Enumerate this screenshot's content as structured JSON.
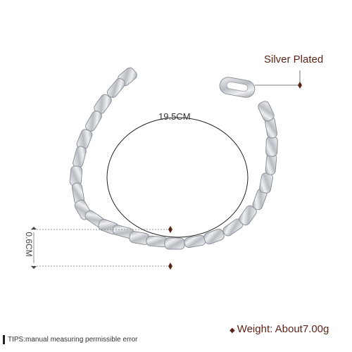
{
  "labels": {
    "material": "Silver Plated",
    "length": "19.5CM",
    "width": "0.6CM",
    "weight": "Weight: About7.00g",
    "tips": "TIPS:manual measuring permissible error"
  },
  "colors": {
    "accent": "#5a2418",
    "metal": "#c9ccd1"
  }
}
